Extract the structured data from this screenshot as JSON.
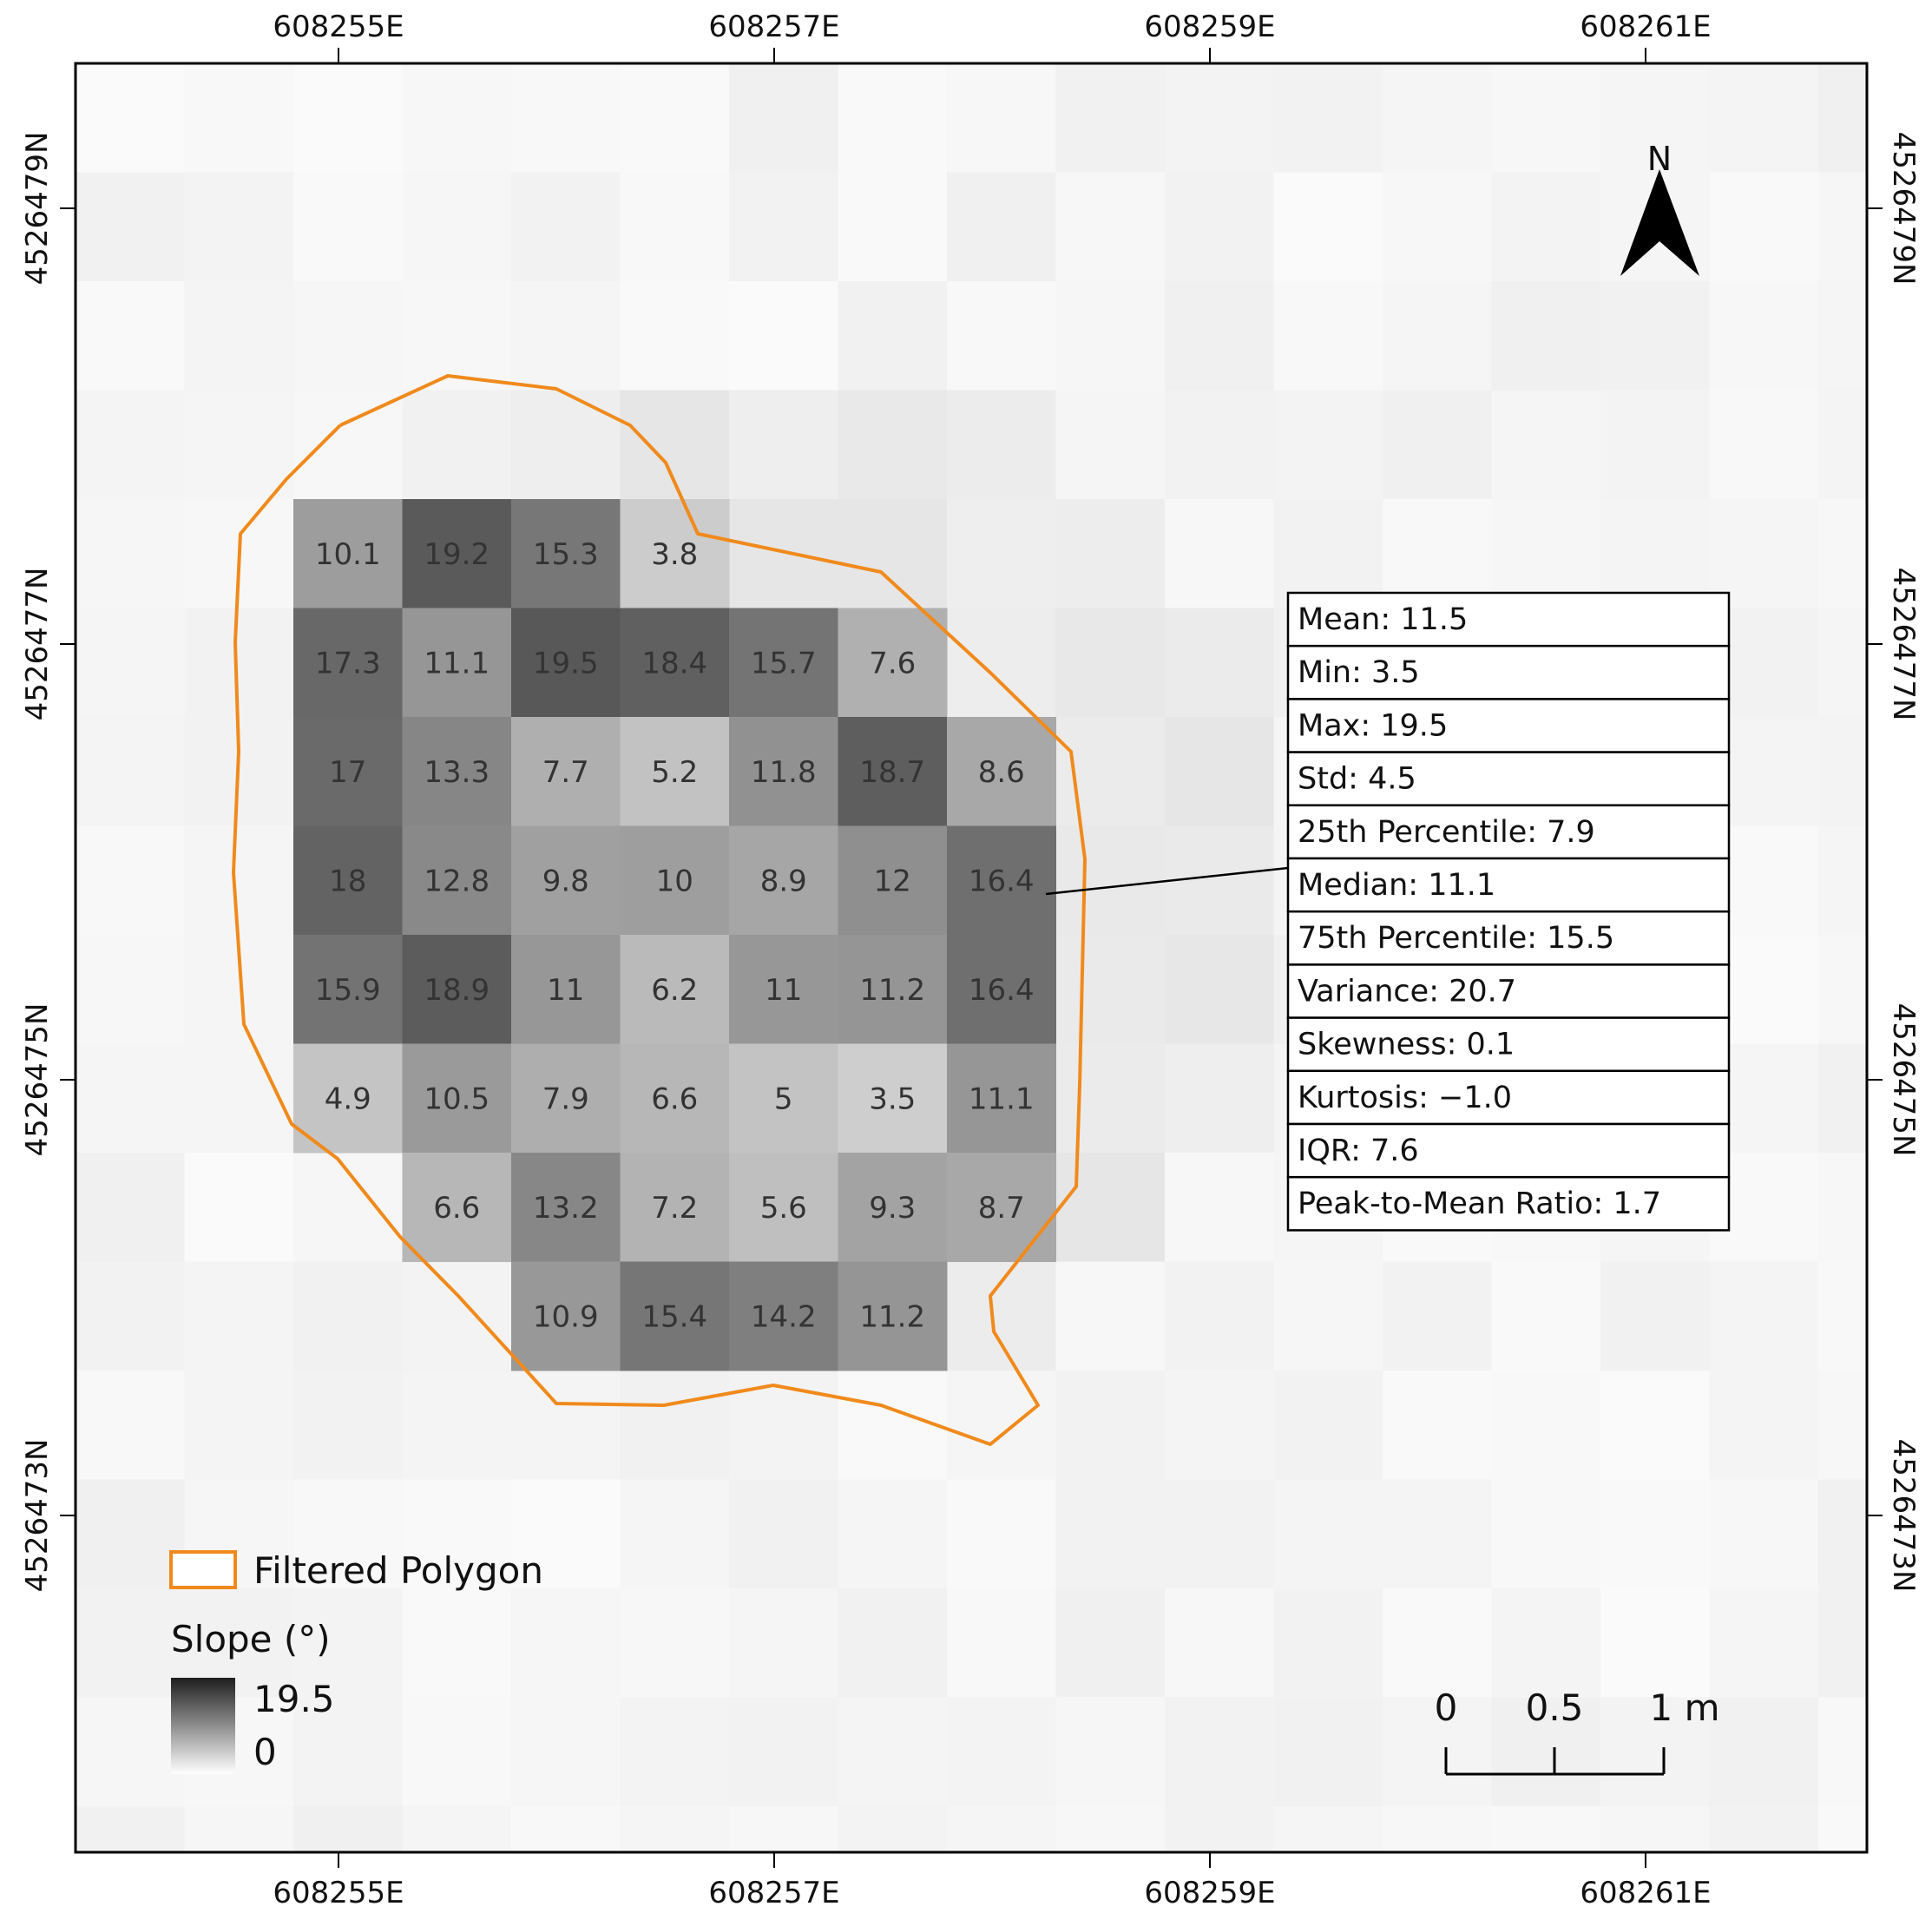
{
  "map": {
    "easting_labels": [
      "608255E",
      "608257E",
      "608259E",
      "608261E"
    ],
    "northing_labels": [
      "4526479N",
      "4526477N",
      "4526475N",
      "4526473N"
    ],
    "north_arrow_label": "N",
    "polygon_color": "#f08a1c",
    "cell_values": [
      [
        "10.1",
        "19.2",
        "15.3",
        "3.8",
        "",
        "",
        ""
      ],
      [
        "17.3",
        "11.1",
        "19.5",
        "18.4",
        "15.7",
        "7.6",
        ""
      ],
      [
        "17",
        "13.3",
        "7.7",
        "5.2",
        "11.8",
        "18.7",
        "8.6"
      ],
      [
        "18",
        "12.8",
        "9.8",
        "10",
        "8.9",
        "12",
        "16.4"
      ],
      [
        "15.9",
        "18.9",
        "11",
        "6.2",
        "11",
        "11.2",
        "16.4"
      ],
      [
        "4.9",
        "10.5",
        "7.9",
        "6.6",
        "5",
        "3.5",
        "11.1"
      ],
      [
        "",
        "6.6",
        "13.2",
        "7.2",
        "5.6",
        "9.3",
        "8.7"
      ],
      [
        "",
        "",
        "10.9",
        "15.4",
        "14.2",
        "11.2",
        ""
      ]
    ]
  },
  "stats": [
    "Mean: 11.5",
    "Min: 3.5",
    "Max: 19.5",
    "Std: 4.5",
    "25th Percentile: 7.9",
    "Median: 11.1",
    "75th Percentile: 15.5",
    "Variance: 20.7",
    "Skewness: 0.1",
    "Kurtosis: −1.0",
    "IQR: 7.6",
    "Peak-to-Mean Ratio: 1.7"
  ],
  "legend": {
    "polygon_label": "Filtered Polygon",
    "slope_title": "Slope (°)",
    "max_label": "19.5",
    "min_label": "0"
  },
  "scale_bar": {
    "labels": [
      "0",
      "0.5",
      "1 m"
    ]
  }
}
